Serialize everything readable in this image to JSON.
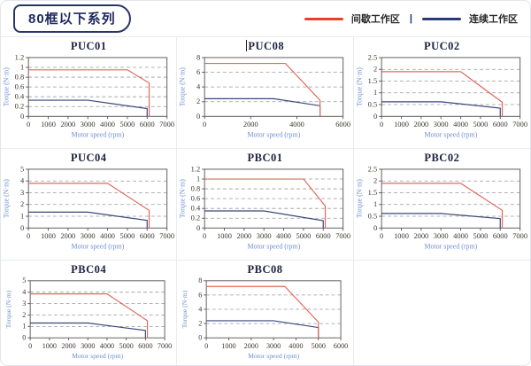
{
  "header": {
    "series_tag": "80框以下系列",
    "legend": {
      "items": [
        {
          "label": "间歇工作区",
          "color": "#e8402a"
        },
        {
          "label": "连续工作区",
          "color": "#2a3a78"
        }
      ],
      "separator": "|"
    }
  },
  "style_colors": {
    "intermittent_curve": "#e2685b",
    "continuous_curve": "#3a477c",
    "gridline": "#9a9a9a",
    "plot_border": "#5f5f5f",
    "axis_title_blue": "#6f8fd2"
  },
  "chart_data": [
    {
      "type": "line",
      "title": "PUC01",
      "xlabel": "Motor speed (rpm)",
      "ylabel": "Torque (N·m)",
      "xlim": [
        0,
        7000
      ],
      "ylim": [
        0,
        1.2
      ],
      "x_ticks": [
        0,
        1000,
        2000,
        3000,
        4000,
        5000,
        6000,
        7000
      ],
      "y_ticks": [
        0,
        0.2,
        0.4,
        0.6,
        0.8,
        1,
        1.2
      ],
      "grid": "horizontal-dashed",
      "series": [
        {
          "name": "间歇工作区",
          "color": "#e2685b",
          "points": [
            [
              0,
              0.95
            ],
            [
              5000,
              0.95
            ],
            [
              6100,
              0.68
            ],
            [
              6100,
              0
            ]
          ]
        },
        {
          "name": "连续工作区",
          "color": "#3a477c",
          "points": [
            [
              0,
              0.33
            ],
            [
              3000,
              0.33
            ],
            [
              6000,
              0.16
            ],
            [
              6000,
              0
            ]
          ]
        }
      ]
    },
    {
      "type": "line",
      "title": "PUC08",
      "cursor": true,
      "xlabel": "Motor speed (rpm)",
      "ylabel": "Torque (N·m)",
      "xlim": [
        0,
        6000
      ],
      "ylim": [
        0,
        8
      ],
      "x_ticks": [
        0,
        2000,
        4000,
        6000
      ],
      "y_ticks": [
        0,
        2,
        4,
        6,
        8
      ],
      "grid": "horizontal-dashed",
      "series": [
        {
          "name": "间歇工作区",
          "color": "#e2685b",
          "points": [
            [
              0,
              7.2
            ],
            [
              3500,
              7.2
            ],
            [
              5000,
              2.2
            ],
            [
              5000,
              0
            ]
          ]
        },
        {
          "name": "连续工作区",
          "color": "#3a477c",
          "points": [
            [
              0,
              2.4
            ],
            [
              3000,
              2.4
            ],
            [
              5000,
              1.45
            ],
            [
              5000,
              0
            ]
          ]
        }
      ]
    },
    {
      "type": "line",
      "title": "PUC02",
      "xlabel": "Motor speed (rpm)",
      "ylabel": "Torque (N·m)",
      "xlim": [
        0,
        7000
      ],
      "ylim": [
        0,
        2.5
      ],
      "x_ticks": [
        0,
        1000,
        2000,
        3000,
        4000,
        5000,
        6000,
        7000
      ],
      "y_ticks": [
        0,
        0.5,
        1,
        1.5,
        2,
        2.5
      ],
      "grid": "horizontal-dashed",
      "series": [
        {
          "name": "间歇工作区",
          "color": "#e2685b",
          "points": [
            [
              0,
              1.9
            ],
            [
              4000,
              1.9
            ],
            [
              6100,
              0.6
            ],
            [
              6100,
              0
            ]
          ]
        },
        {
          "name": "连续工作区",
          "color": "#3a477c",
          "points": [
            [
              0,
              0.62
            ],
            [
              3000,
              0.62
            ],
            [
              6000,
              0.35
            ],
            [
              6000,
              0
            ]
          ]
        }
      ]
    },
    {
      "type": "line",
      "title": "PUC04",
      "xlabel": "Motor speed (rpm)",
      "ylabel": "Torque (N·m)",
      "xlim": [
        0,
        7000
      ],
      "ylim": [
        0,
        5
      ],
      "x_ticks": [
        0,
        1000,
        2000,
        3000,
        4000,
        5000,
        6000,
        7000
      ],
      "y_ticks": [
        0,
        1,
        2,
        3,
        4,
        5
      ],
      "grid": "horizontal-dashed",
      "series": [
        {
          "name": "间歇工作区",
          "color": "#e2685b",
          "points": [
            [
              0,
              3.8
            ],
            [
              4000,
              3.8
            ],
            [
              6100,
              1.5
            ],
            [
              6100,
              0
            ]
          ]
        },
        {
          "name": "连续工作区",
          "color": "#3a477c",
          "points": [
            [
              0,
              1.35
            ],
            [
              3000,
              1.35
            ],
            [
              6000,
              0.65
            ],
            [
              6000,
              0
            ]
          ]
        }
      ]
    },
    {
      "type": "line",
      "title": "PBC01",
      "xlabel": "Motor speed (rpm)",
      "ylabel": "Torque (N·m)",
      "xlim": [
        0,
        7000
      ],
      "ylim": [
        0,
        1.2
      ],
      "x_ticks": [
        0,
        1000,
        2000,
        3000,
        4000,
        5000,
        6000,
        7000
      ],
      "y_ticks": [
        0,
        0.2,
        0.4,
        0.6,
        0.8,
        1,
        1.2
      ],
      "grid": "horizontal-dashed",
      "series": [
        {
          "name": "间歇工作区",
          "color": "#e2685b",
          "points": [
            [
              0,
              1.0
            ],
            [
              5000,
              1.0
            ],
            [
              6100,
              0.45
            ],
            [
              6100,
              0
            ]
          ]
        },
        {
          "name": "连续工作区",
          "color": "#3a477c",
          "points": [
            [
              0,
              0.35
            ],
            [
              3000,
              0.35
            ],
            [
              6000,
              0.15
            ],
            [
              6000,
              0
            ]
          ]
        }
      ]
    },
    {
      "type": "line",
      "title": "PBC02",
      "xlabel": "Motor speed (rpm)",
      "ylabel": "Torque (N·m)",
      "xlim": [
        0,
        7000
      ],
      "ylim": [
        0,
        2.5
      ],
      "x_ticks": [
        0,
        1000,
        2000,
        3000,
        4000,
        5000,
        6000,
        7000
      ],
      "y_ticks": [
        0,
        0.5,
        1,
        1.5,
        2,
        2.5
      ],
      "grid": "horizontal-dashed",
      "series": [
        {
          "name": "间歇工作区",
          "color": "#e2685b",
          "points": [
            [
              0,
              1.9
            ],
            [
              4000,
              1.9
            ],
            [
              6100,
              0.75
            ],
            [
              6100,
              0
            ]
          ]
        },
        {
          "name": "连续工作区",
          "color": "#3a477c",
          "points": [
            [
              0,
              0.62
            ],
            [
              3000,
              0.62
            ],
            [
              6000,
              0.4
            ],
            [
              6000,
              0
            ]
          ]
        }
      ]
    },
    {
      "type": "line",
      "title": "PBC04",
      "xlabel": "Motor speed (rpm)",
      "ylabel": "Torque (N·m)",
      "xlim": [
        0,
        7000
      ],
      "ylim": [
        0,
        5
      ],
      "x_ticks": [
        0,
        1000,
        2000,
        3000,
        4000,
        5000,
        6000,
        7000
      ],
      "y_ticks": [
        0,
        1,
        2,
        3,
        4,
        5
      ],
      "grid": "horizontal-dashed",
      "series": [
        {
          "name": "间歇工作区",
          "color": "#e2685b",
          "points": [
            [
              0,
              3.85
            ],
            [
              4000,
              3.85
            ],
            [
              6100,
              1.5
            ],
            [
              6100,
              0
            ]
          ]
        },
        {
          "name": "连续工作区",
          "color": "#3a477c",
          "points": [
            [
              0,
              1.3
            ],
            [
              3000,
              1.3
            ],
            [
              6000,
              0.65
            ],
            [
              6000,
              0
            ]
          ]
        }
      ]
    },
    {
      "type": "line",
      "title": "PBC08",
      "xlabel": "Motor speed (rpm)",
      "ylabel": "Torque (N·m)",
      "xlim": [
        0,
        6000
      ],
      "ylim": [
        0,
        8
      ],
      "x_ticks": [
        0,
        1000,
        2000,
        3000,
        4000,
        5000,
        6000
      ],
      "y_ticks": [
        0,
        2,
        4,
        6,
        8
      ],
      "grid": "horizontal-dashed",
      "series": [
        {
          "name": "间歇工作区",
          "color": "#e2685b",
          "points": [
            [
              0,
              7.2
            ],
            [
              3500,
              7.2
            ],
            [
              5000,
              2.2
            ],
            [
              5000,
              0
            ]
          ]
        },
        {
          "name": "连续工作区",
          "color": "#3a477c",
          "points": [
            [
              0,
              2.4
            ],
            [
              3000,
              2.4
            ],
            [
              5000,
              1.45
            ],
            [
              5000,
              0
            ]
          ]
        }
      ]
    }
  ]
}
